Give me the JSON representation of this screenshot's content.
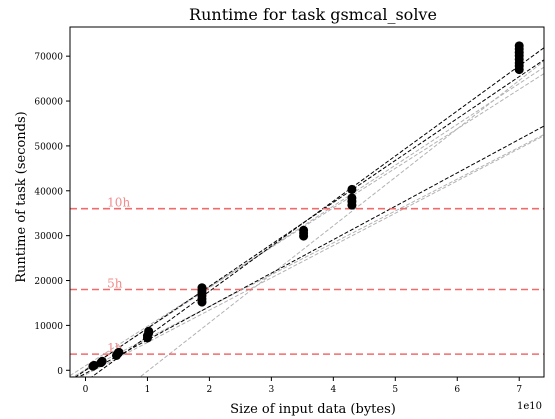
{
  "chart_data": {
    "type": "scatter",
    "title": "Runtime for task gsmcal_solve",
    "xlabel": "Size of input data (bytes)",
    "ylabel": "Runtime of task (seconds)",
    "x_offset_text": "1e10",
    "xlim": [
      -0.25,
      7.4
    ],
    "ylim": [
      -1500,
      76500
    ],
    "x_scale_factor": 10000000000,
    "xticks": [
      0,
      1,
      2,
      3,
      4,
      5,
      6,
      7
    ],
    "xtick_labels": [
      "0",
      "1",
      "2",
      "3",
      "4",
      "5",
      "6",
      "7"
    ],
    "yticks": [
      0,
      10000,
      20000,
      30000,
      40000,
      50000,
      60000,
      70000
    ],
    "ytick_labels": [
      "0",
      "10000",
      "20000",
      "30000",
      "40000",
      "50000",
      "60000",
      "70000"
    ],
    "grid": false,
    "colors": {
      "points": "#000000",
      "hline": "#f26b6b",
      "hline_label": "#f28b8b",
      "fit_black": "#000000",
      "fit_gray": "#b3b3b3"
    },
    "hlines": [
      {
        "label": "1h",
        "y": 3600
      },
      {
        "label": "5h",
        "y": 18000
      },
      {
        "label": "10h",
        "y": 36000
      }
    ],
    "points": [
      {
        "x": 0.12,
        "y": 900
      },
      {
        "x": 0.14,
        "y": 1100
      },
      {
        "x": 0.25,
        "y": 1700
      },
      {
        "x": 0.27,
        "y": 2000
      },
      {
        "x": 0.5,
        "y": 3300
      },
      {
        "x": 0.52,
        "y": 3700
      },
      {
        "x": 0.54,
        "y": 4000
      },
      {
        "x": 1.0,
        "y": 7200
      },
      {
        "x": 1.0,
        "y": 7700
      },
      {
        "x": 1.02,
        "y": 8300
      },
      {
        "x": 1.02,
        "y": 8700
      },
      {
        "x": 1.88,
        "y": 15200
      },
      {
        "x": 1.88,
        "y": 15900
      },
      {
        "x": 1.88,
        "y": 16600
      },
      {
        "x": 1.88,
        "y": 17200
      },
      {
        "x": 1.88,
        "y": 17800
      },
      {
        "x": 1.88,
        "y": 18400
      },
      {
        "x": 3.52,
        "y": 29900
      },
      {
        "x": 3.52,
        "y": 30600
      },
      {
        "x": 3.52,
        "y": 31200
      },
      {
        "x": 4.3,
        "y": 36800
      },
      {
        "x": 4.3,
        "y": 37600
      },
      {
        "x": 4.3,
        "y": 38400
      },
      {
        "x": 4.3,
        "y": 40300
      },
      {
        "x": 7.0,
        "y": 67000
      },
      {
        "x": 7.0,
        "y": 67800
      },
      {
        "x": 7.0,
        "y": 68500
      },
      {
        "x": 7.0,
        "y": 69300
      },
      {
        "x": 7.0,
        "y": 70100
      },
      {
        "x": 7.0,
        "y": 70800
      },
      {
        "x": 7.0,
        "y": 71600
      },
      {
        "x": 7.0,
        "y": 72300
      }
    ],
    "fit_lines": [
      {
        "style": "black",
        "slope": 9350,
        "intercept": 0
      },
      {
        "style": "black",
        "slope": 10050,
        "intercept": -2500
      },
      {
        "style": "black",
        "slope": 7450,
        "intercept": -700
      },
      {
        "style": "gray",
        "slope": 9100,
        "intercept": 200
      },
      {
        "style": "gray",
        "slope": 8800,
        "intercept": 1000
      },
      {
        "style": "gray",
        "slope": 7200,
        "intercept": -1000
      },
      {
        "style": "gray",
        "slope": 7100,
        "intercept": 0
      },
      {
        "style": "gray",
        "slope": 10800,
        "intercept": -11000
      }
    ]
  }
}
